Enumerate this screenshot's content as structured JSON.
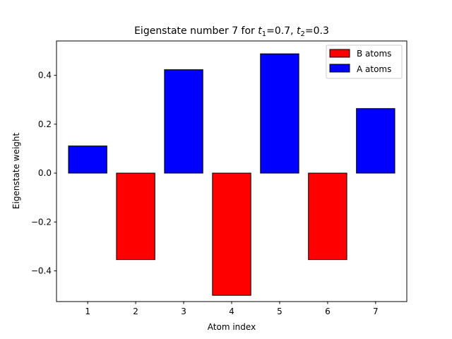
{
  "chart_data": {
    "type": "bar",
    "title": {
      "prefix": "Eigenstate number 7 for ",
      "t1_symbol": "t",
      "t1_sub": "1",
      "t1_value": "=0.7, ",
      "t2_symbol": "t",
      "t2_sub": "2",
      "t2_value": "=0.3"
    },
    "xlabel": "Atom index",
    "ylabel": "Eigenstate weight",
    "categories": [
      1,
      2,
      3,
      4,
      5,
      6,
      7
    ],
    "xlim": [
      0.35,
      7.65
    ],
    "ylim": [
      -0.5255,
      0.5405
    ],
    "yticks": [
      -0.4,
      -0.2,
      0.0,
      0.2,
      0.4
    ],
    "ytick_labels": [
      "−0.4",
      "−0.2",
      "0.0",
      "0.2",
      "0.4"
    ],
    "xtick_labels": [
      "1",
      "2",
      "3",
      "4",
      "5",
      "6",
      "7"
    ],
    "grid": false,
    "legend_position": "top-right",
    "series": [
      {
        "name": "B atoms",
        "color": "#ff0000",
        "x": [
          2,
          4,
          6
        ],
        "values": [
          -0.354,
          -0.5,
          -0.354
        ]
      },
      {
        "name": "A atoms",
        "color": "#0000ff",
        "x": [
          1,
          3,
          5,
          7
        ],
        "values": [
          0.111,
          0.423,
          0.488,
          0.264
        ]
      }
    ]
  }
}
